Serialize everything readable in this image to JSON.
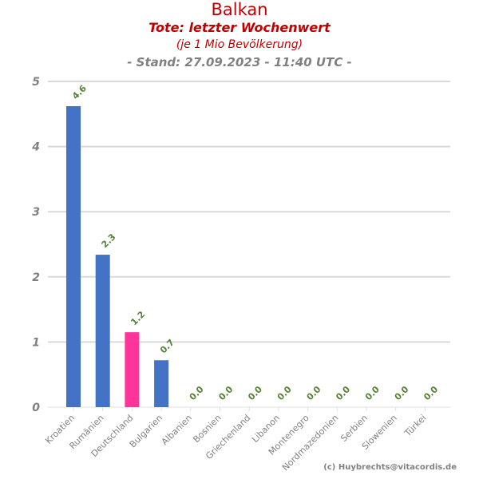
{
  "chart_data": {
    "type": "bar",
    "title": "Balkan",
    "subtitle": "Tote: letzter Wochenwert",
    "subtitle2": "(je 1 Mio Bevölkerung)",
    "stand": "- Stand: 27.09.2023 - 11:40 UTC -",
    "credit": "(c) Huybrechts@vitacordis.de",
    "categories": [
      "Kroatien",
      "Rumänien",
      "Deutschland",
      "Bulgarien",
      "Albanien",
      "Bosnien",
      "Griechenland",
      "Libanon",
      "Montenegro",
      "Nordmazedonien",
      "Serbien",
      "Slowenien",
      "Türkei"
    ],
    "values": [
      4.62,
      2.34,
      1.15,
      0.72,
      0,
      0,
      0,
      0,
      0,
      0,
      0,
      0,
      0
    ],
    "labels": [
      "4.6",
      "2.3",
      "1.2",
      "0.7",
      "0.0",
      "0.0",
      "0.0",
      "0.0",
      "0.0",
      "0.0",
      "0.0",
      "0.0",
      "0.0"
    ],
    "colors": [
      "#4472c4",
      "#4472c4",
      "#ff3399",
      "#4472c4",
      "#4472c4",
      "#4472c4",
      "#4472c4",
      "#4472c4",
      "#4472c4",
      "#4472c4",
      "#4472c4",
      "#4472c4",
      "#4472c4"
    ],
    "yticks": [
      "0",
      "1",
      "2",
      "3",
      "4",
      "5"
    ],
    "ylim": [
      0,
      5
    ],
    "grid": true,
    "title_color": "#c00000",
    "label_color": "#548235"
  }
}
